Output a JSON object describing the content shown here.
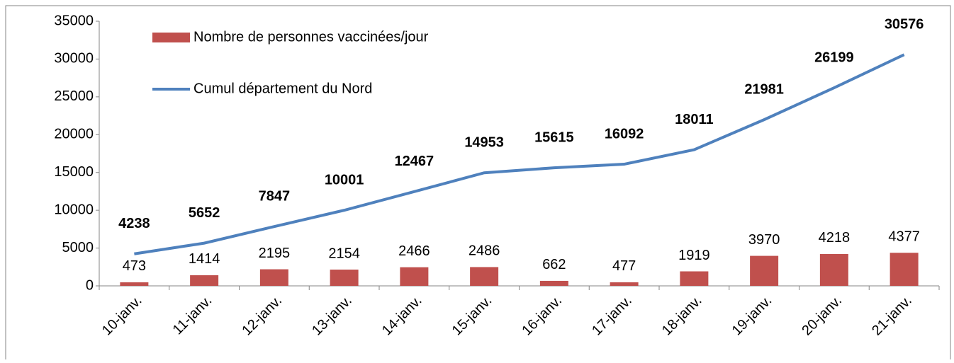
{
  "chart_data": {
    "type": "combo",
    "categories": [
      "10-janv.",
      "11-janv.",
      "12-janv.",
      "13-janv.",
      "14-janv.",
      "15-janv.",
      "16-janv.",
      "17-janv.",
      "18-janv.",
      "19-janv.",
      "20-janv.",
      "21-janv."
    ],
    "series": [
      {
        "name": "Nombre de personnes vaccinées/jour",
        "type": "bar",
        "color": "#c0504d",
        "values": [
          473,
          1414,
          2195,
          2154,
          2466,
          2486,
          662,
          477,
          1919,
          3970,
          4218,
          4377
        ]
      },
      {
        "name": "Cumul département du Nord",
        "type": "line",
        "color": "#4f81bd",
        "values": [
          4238,
          5652,
          7847,
          10001,
          12467,
          14953,
          15615,
          16092,
          18011,
          21981,
          26199,
          30576
        ]
      }
    ],
    "ylim": [
      0,
      35000
    ],
    "yticks": [
      0,
      5000,
      10000,
      15000,
      20000,
      25000,
      30000,
      35000
    ],
    "grid": false
  }
}
